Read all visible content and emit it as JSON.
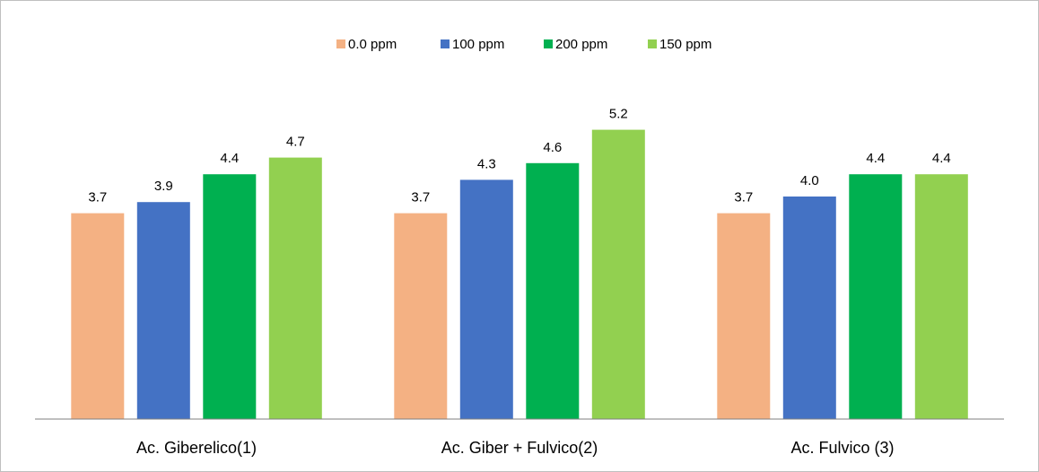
{
  "chart_data": {
    "type": "bar",
    "title": "",
    "xlabel": "",
    "ylabel": "",
    "categories": [
      "Ac. Giberelico(1)",
      "Ac. Giber + Fulvico(2)",
      "Ac. Fulvico (3)"
    ],
    "series": [
      {
        "name": "0.0 ppm",
        "color": "#F4B183",
        "values": [
          3.7,
          3.7,
          3.7
        ],
        "labels": [
          "3.7",
          "3.7",
          "3.7"
        ]
      },
      {
        "name": "100 ppm",
        "color": "#4472C4",
        "values": [
          3.9,
          4.3,
          4.0
        ],
        "labels": [
          "3.9",
          "4.3",
          "4.0"
        ]
      },
      {
        "name": "200 ppm",
        "color": "#00B050",
        "values": [
          4.4,
          4.6,
          4.4
        ],
        "labels": [
          "4.4",
          "4.6",
          "4.4"
        ]
      },
      {
        "name": "150 ppm",
        "color": "#92D050",
        "values": [
          4.7,
          5.2,
          4.4
        ],
        "labels": [
          "4.7",
          "5.2",
          "4.4"
        ]
      }
    ],
    "ylim": [
      0,
      6
    ],
    "legend_position": "top",
    "grid": false
  }
}
